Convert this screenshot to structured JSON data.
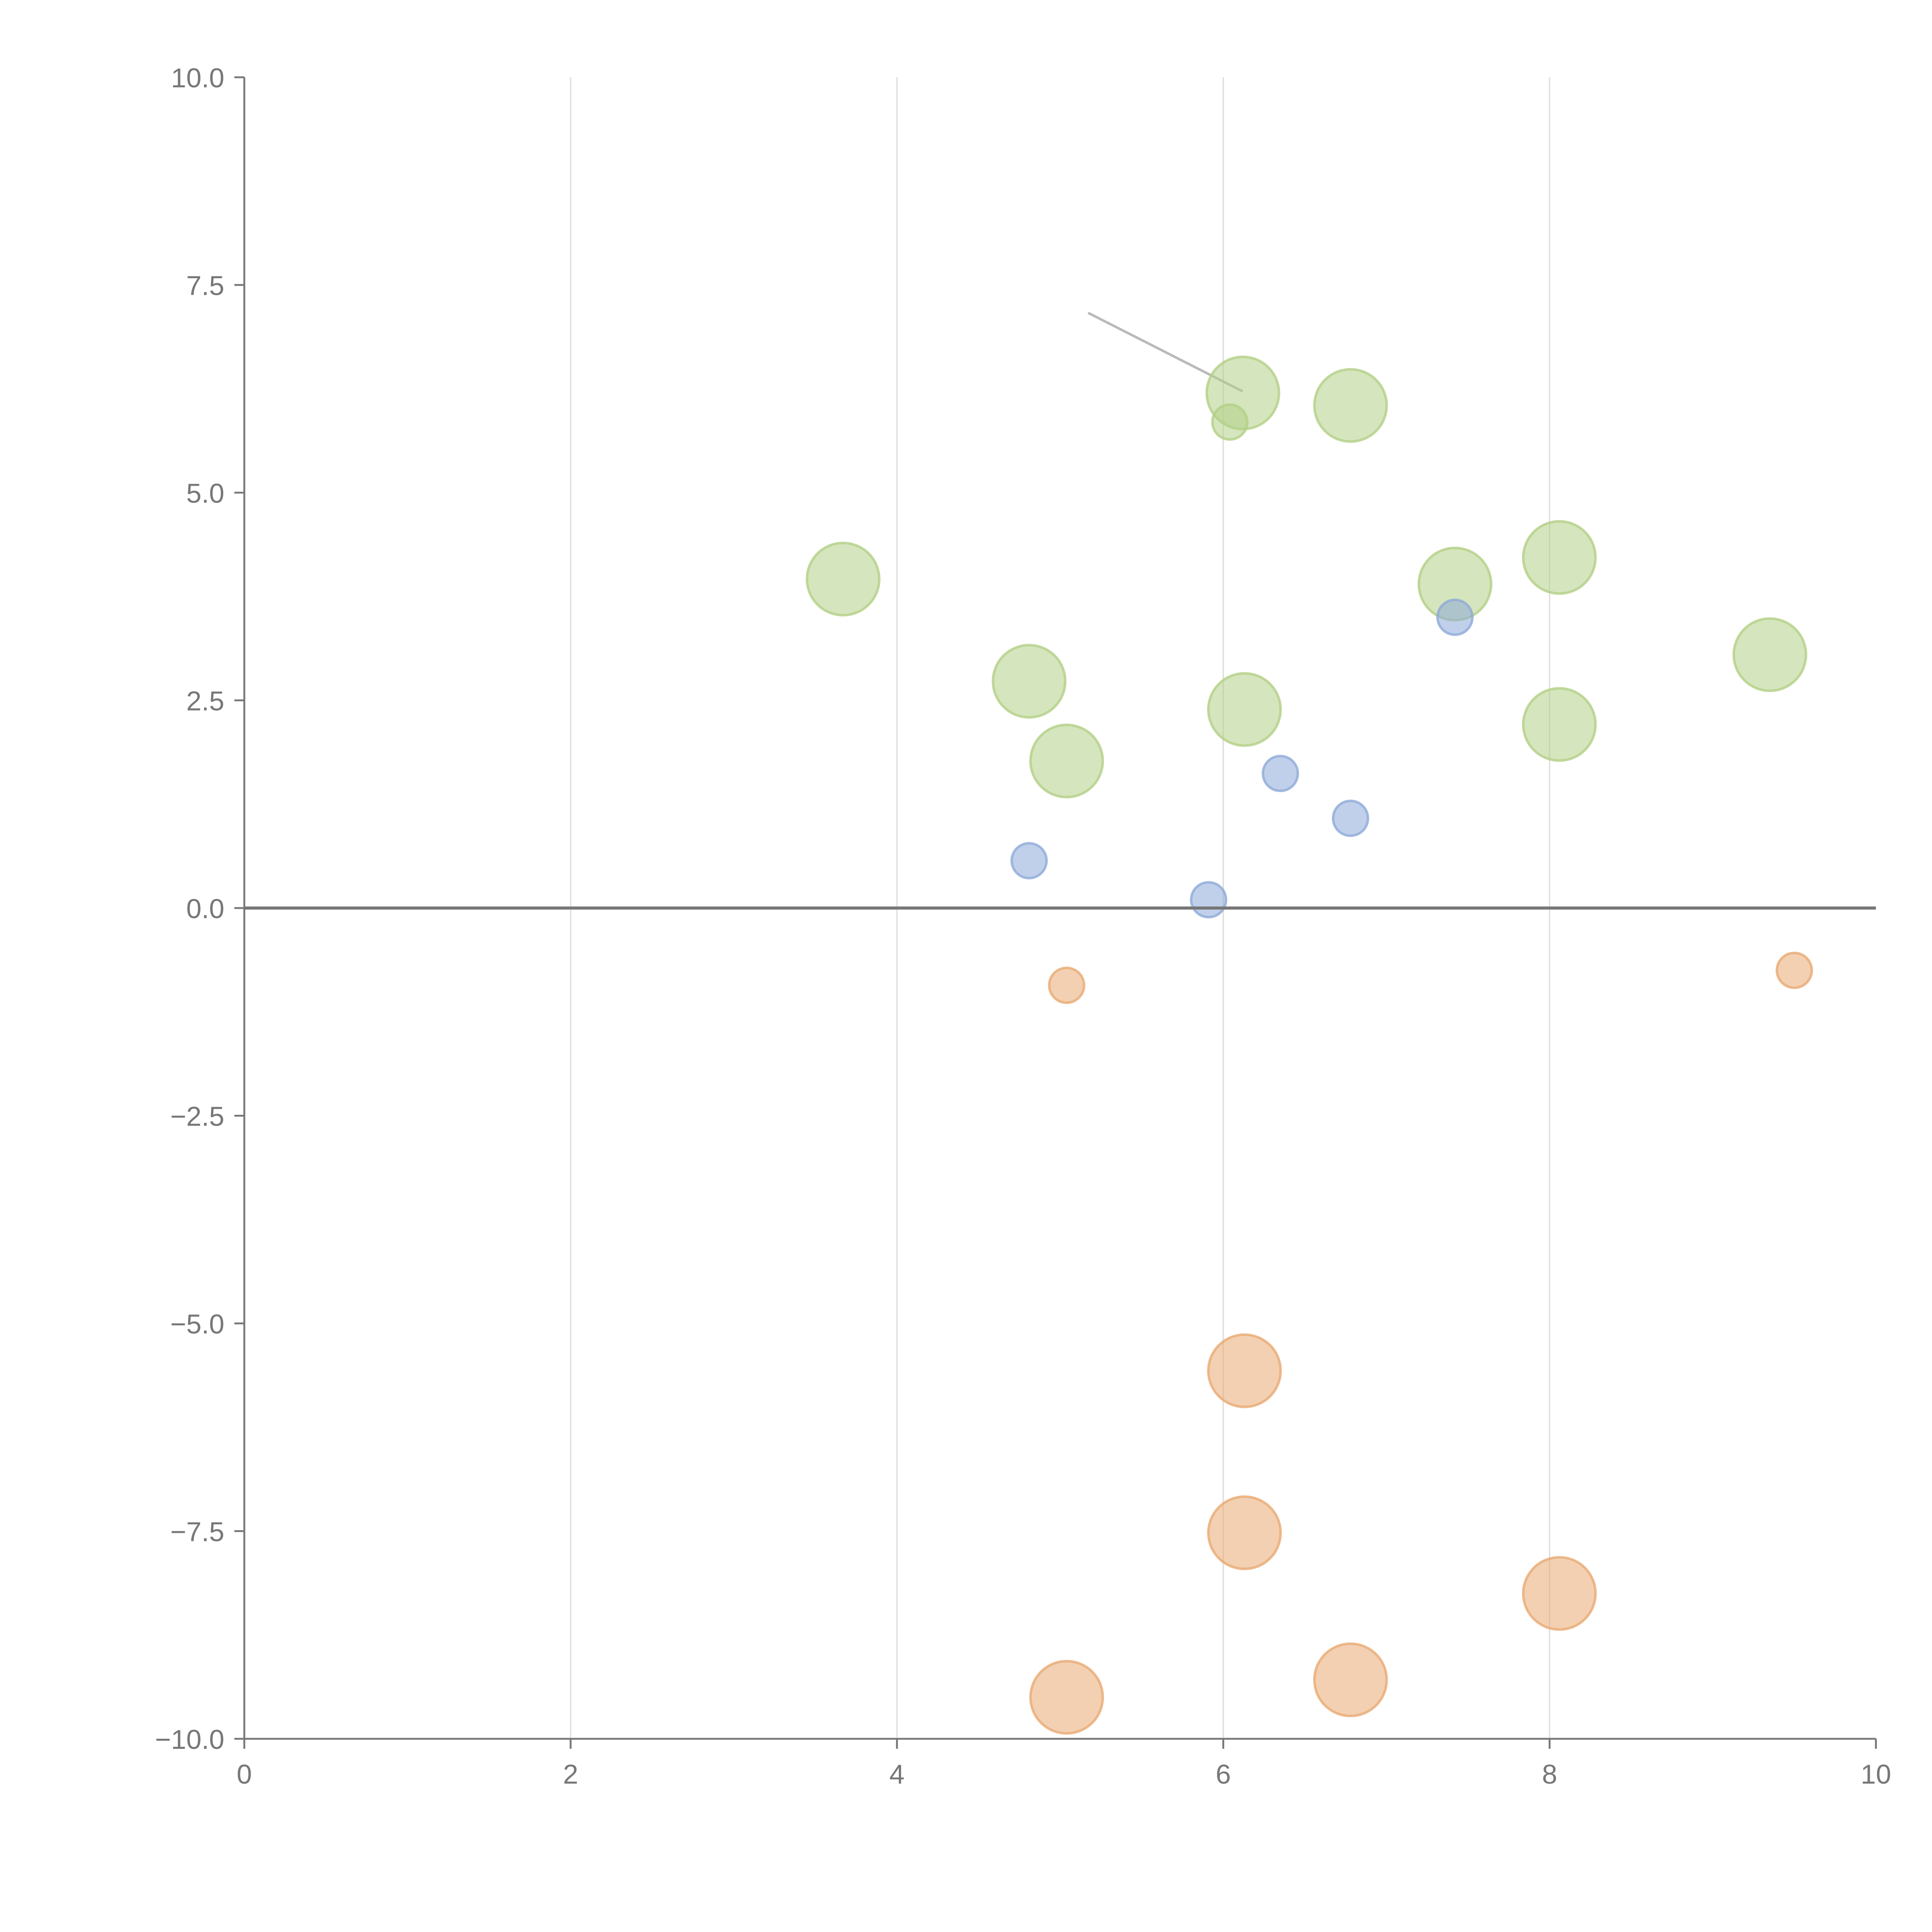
{
  "chart_data": {
    "type": "scatter",
    "title": "",
    "xlabel": "",
    "ylabel": "",
    "xlim": [
      0,
      10
    ],
    "ylim": [
      -10,
      10
    ],
    "grid": "vertical",
    "x_ticks": [
      "0",
      "2",
      "4",
      "6",
      "8",
      "10"
    ],
    "x_tick_values": [
      0,
      2,
      4,
      6,
      8,
      10
    ],
    "y_ticks": [
      "10.0",
      "7.5",
      "5.0",
      "2.5",
      "0.0",
      "−2.5",
      "−5.0",
      "−7.5",
      "−10.0"
    ],
    "y_tick_values": [
      10,
      7.5,
      5,
      2.5,
      0,
      -2.5,
      -5,
      -7.5,
      -10
    ],
    "series": [
      {
        "name": "green",
        "color": "#b3cf86",
        "points": [
          {
            "x": 3.67,
            "y": 3.96,
            "size": 2
          },
          {
            "x": 6.12,
            "y": 6.2,
            "size": 2
          },
          {
            "x": 6.04,
            "y": 5.85,
            "size": 1
          },
          {
            "x": 6.78,
            "y": 6.05,
            "size": 2
          },
          {
            "x": 7.42,
            "y": 3.9,
            "size": 2
          },
          {
            "x": 8.06,
            "y": 4.22,
            "size": 2
          },
          {
            "x": 9.35,
            "y": 3.05,
            "size": 2
          },
          {
            "x": 4.81,
            "y": 2.73,
            "size": 2
          },
          {
            "x": 6.13,
            "y": 2.39,
            "size": 2
          },
          {
            "x": 5.04,
            "y": 1.77,
            "size": 2
          },
          {
            "x": 8.06,
            "y": 2.21,
            "size": 2
          }
        ]
      },
      {
        "name": "blue",
        "color": "#8eaad8",
        "points": [
          {
            "x": 7.42,
            "y": 3.5,
            "size": 1
          },
          {
            "x": 6.35,
            "y": 1.62,
            "size": 1
          },
          {
            "x": 6.78,
            "y": 1.08,
            "size": 1
          },
          {
            "x": 4.81,
            "y": 0.57,
            "size": 1
          },
          {
            "x": 5.91,
            "y": 0.1,
            "size": 1
          }
        ]
      },
      {
        "name": "orange",
        "color": "#e9aa73",
        "points": [
          {
            "x": 5.04,
            "y": -0.93,
            "size": 1
          },
          {
            "x": 9.5,
            "y": -0.75,
            "size": 1
          },
          {
            "x": 6.13,
            "y": -5.57,
            "size": 2
          },
          {
            "x": 6.13,
            "y": -7.52,
            "size": 2
          },
          {
            "x": 8.06,
            "y": -8.25,
            "size": 2
          },
          {
            "x": 6.78,
            "y": -9.29,
            "size": 2
          },
          {
            "x": 5.04,
            "y": -9.5,
            "size": 2
          }
        ]
      }
    ],
    "reference_line_y": 0
  }
}
